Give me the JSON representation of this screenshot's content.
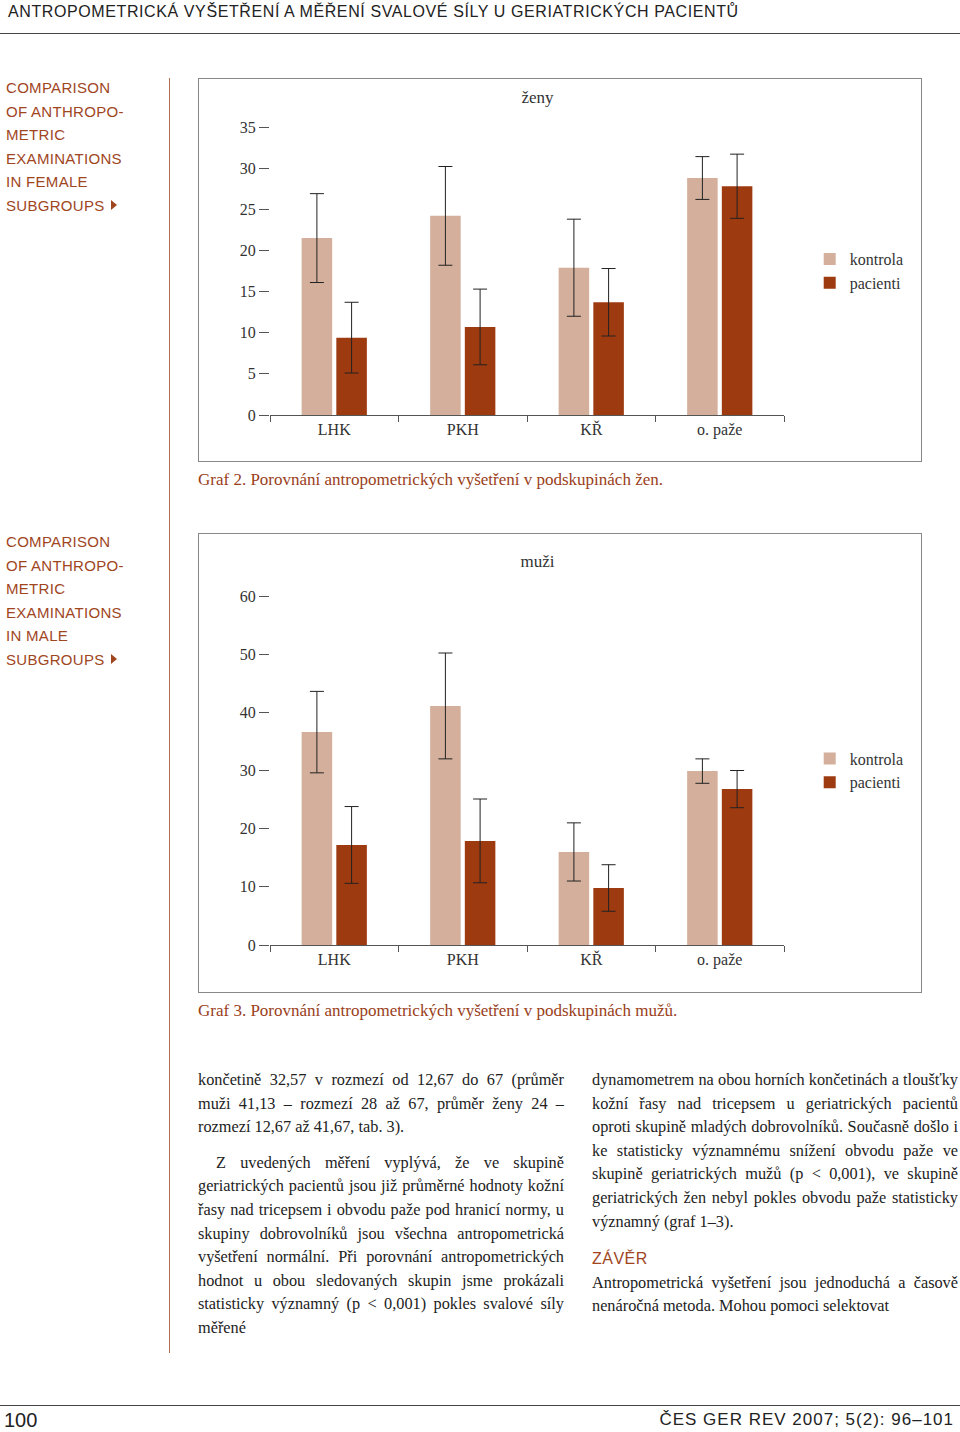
{
  "chart_data": [
    {
      "type": "bar",
      "title": "ženy",
      "categories": [
        "LHK",
        "PKH",
        "KŘ",
        "o. paže"
      ],
      "series": [
        {
          "name": "kontrola",
          "color": "#d4b09c",
          "values": [
            21.5,
            24.2,
            17.9,
            28.8
          ],
          "errors": [
            5.4,
            6.0,
            5.9,
            2.6
          ]
        },
        {
          "name": "pacienti",
          "color": "#9e3a10",
          "values": [
            9.4,
            10.7,
            13.7,
            27.8
          ],
          "errors": [
            4.3,
            4.6,
            4.1,
            3.9
          ]
        }
      ],
      "ylim": [
        0,
        35
      ],
      "yticks": [
        0,
        5,
        10,
        15,
        20,
        25,
        30,
        35
      ],
      "grid": false,
      "legend": "right"
    },
    {
      "type": "bar",
      "title": "muži",
      "categories": [
        "LHK",
        "PKH",
        "KŘ",
        "o. paže"
      ],
      "series": [
        {
          "name": "kontrola",
          "color": "#d4b09c",
          "values": [
            36.6,
            41.1,
            16.0,
            29.9
          ],
          "errors": [
            7.0,
            9.1,
            5.0,
            2.1
          ]
        },
        {
          "name": "pacienti",
          "color": "#9e3a10",
          "values": [
            17.2,
            17.9,
            9.8,
            26.8
          ],
          "errors": [
            6.6,
            7.2,
            4.0,
            3.2
          ]
        }
      ],
      "ylim": [
        0,
        60
      ],
      "yticks": [
        0,
        10,
        20,
        30,
        40,
        50,
        60
      ],
      "grid": false,
      "legend": "right"
    }
  ],
  "page": {
    "header": "ANTROPOMETRICKÁ VYŠETŘENÍ A MĚŘENÍ SVALOVÉ SÍLY U GERIATRICKÝCH PACIENTŮ",
    "figures": [
      {
        "side_label": [
          "COMPARISON",
          "OF ANTHROPO-",
          "METRIC",
          "EXAMINATIONS",
          "IN FEMALE",
          "SUBGROUPS"
        ],
        "caption": "Graf 2. Porovnání antropometrických vyšetření v podskupinách žen."
      },
      {
        "side_label": [
          "COMPARISON",
          "OF ANTHROPO-",
          "METRIC",
          "EXAMINATIONS",
          "IN MALE",
          "SUBGROUPS"
        ],
        "caption": "Graf 3. Porovnání antropometrických vyšetření v podskupinách mužů."
      }
    ],
    "columns": [
      {
        "paragraphs": [
          "končetině 32,57 v rozmezí od 12,67 do 67 (průměr muži 41,13 – rozmezí 28 až 67, průměr ženy 24 – rozmezí 12,67 až 41,67, tab. 3).",
          "Z uvedených měření vyplývá, že ve skupině geriatrických pacientů jsou již průměrné hodnoty kožní řasy nad tricepsem i obvodu paže pod hranicí normy, u skupiny dobrovolníků jsou všechna antropometrická vyšetření normální. Při porovnání antropometrických hodnot u obou sledovaných skupin jsme prokázali statisticky významný (p < 0,001) pokles svalové síly měřené"
        ]
      },
      {
        "paragraphs": [
          "dynamometrem na obou horních končetinách a tloušťky kožní řasy nad tricepsem u geriatrických pacientů oproti skupině mladých dobrovolníků. Současně došlo i ke statisticky významnému snížení obvodu paže ve skupině geriatrických mužů (p < 0,001), ve skupině geriatrických žen nebyl pokles obvodu paže statisticky významný (graf 1–3)."
        ],
        "heading": "ZÁVĚR",
        "after_heading": "Antropometrická vyšetření jsou jednoduchá a časově nenáročná metoda. Mohou pomoci selektovat"
      }
    ],
    "footer": {
      "page_number": "100",
      "journal": "ČES GER REV 2007; 5(2): 96–101"
    }
  }
}
